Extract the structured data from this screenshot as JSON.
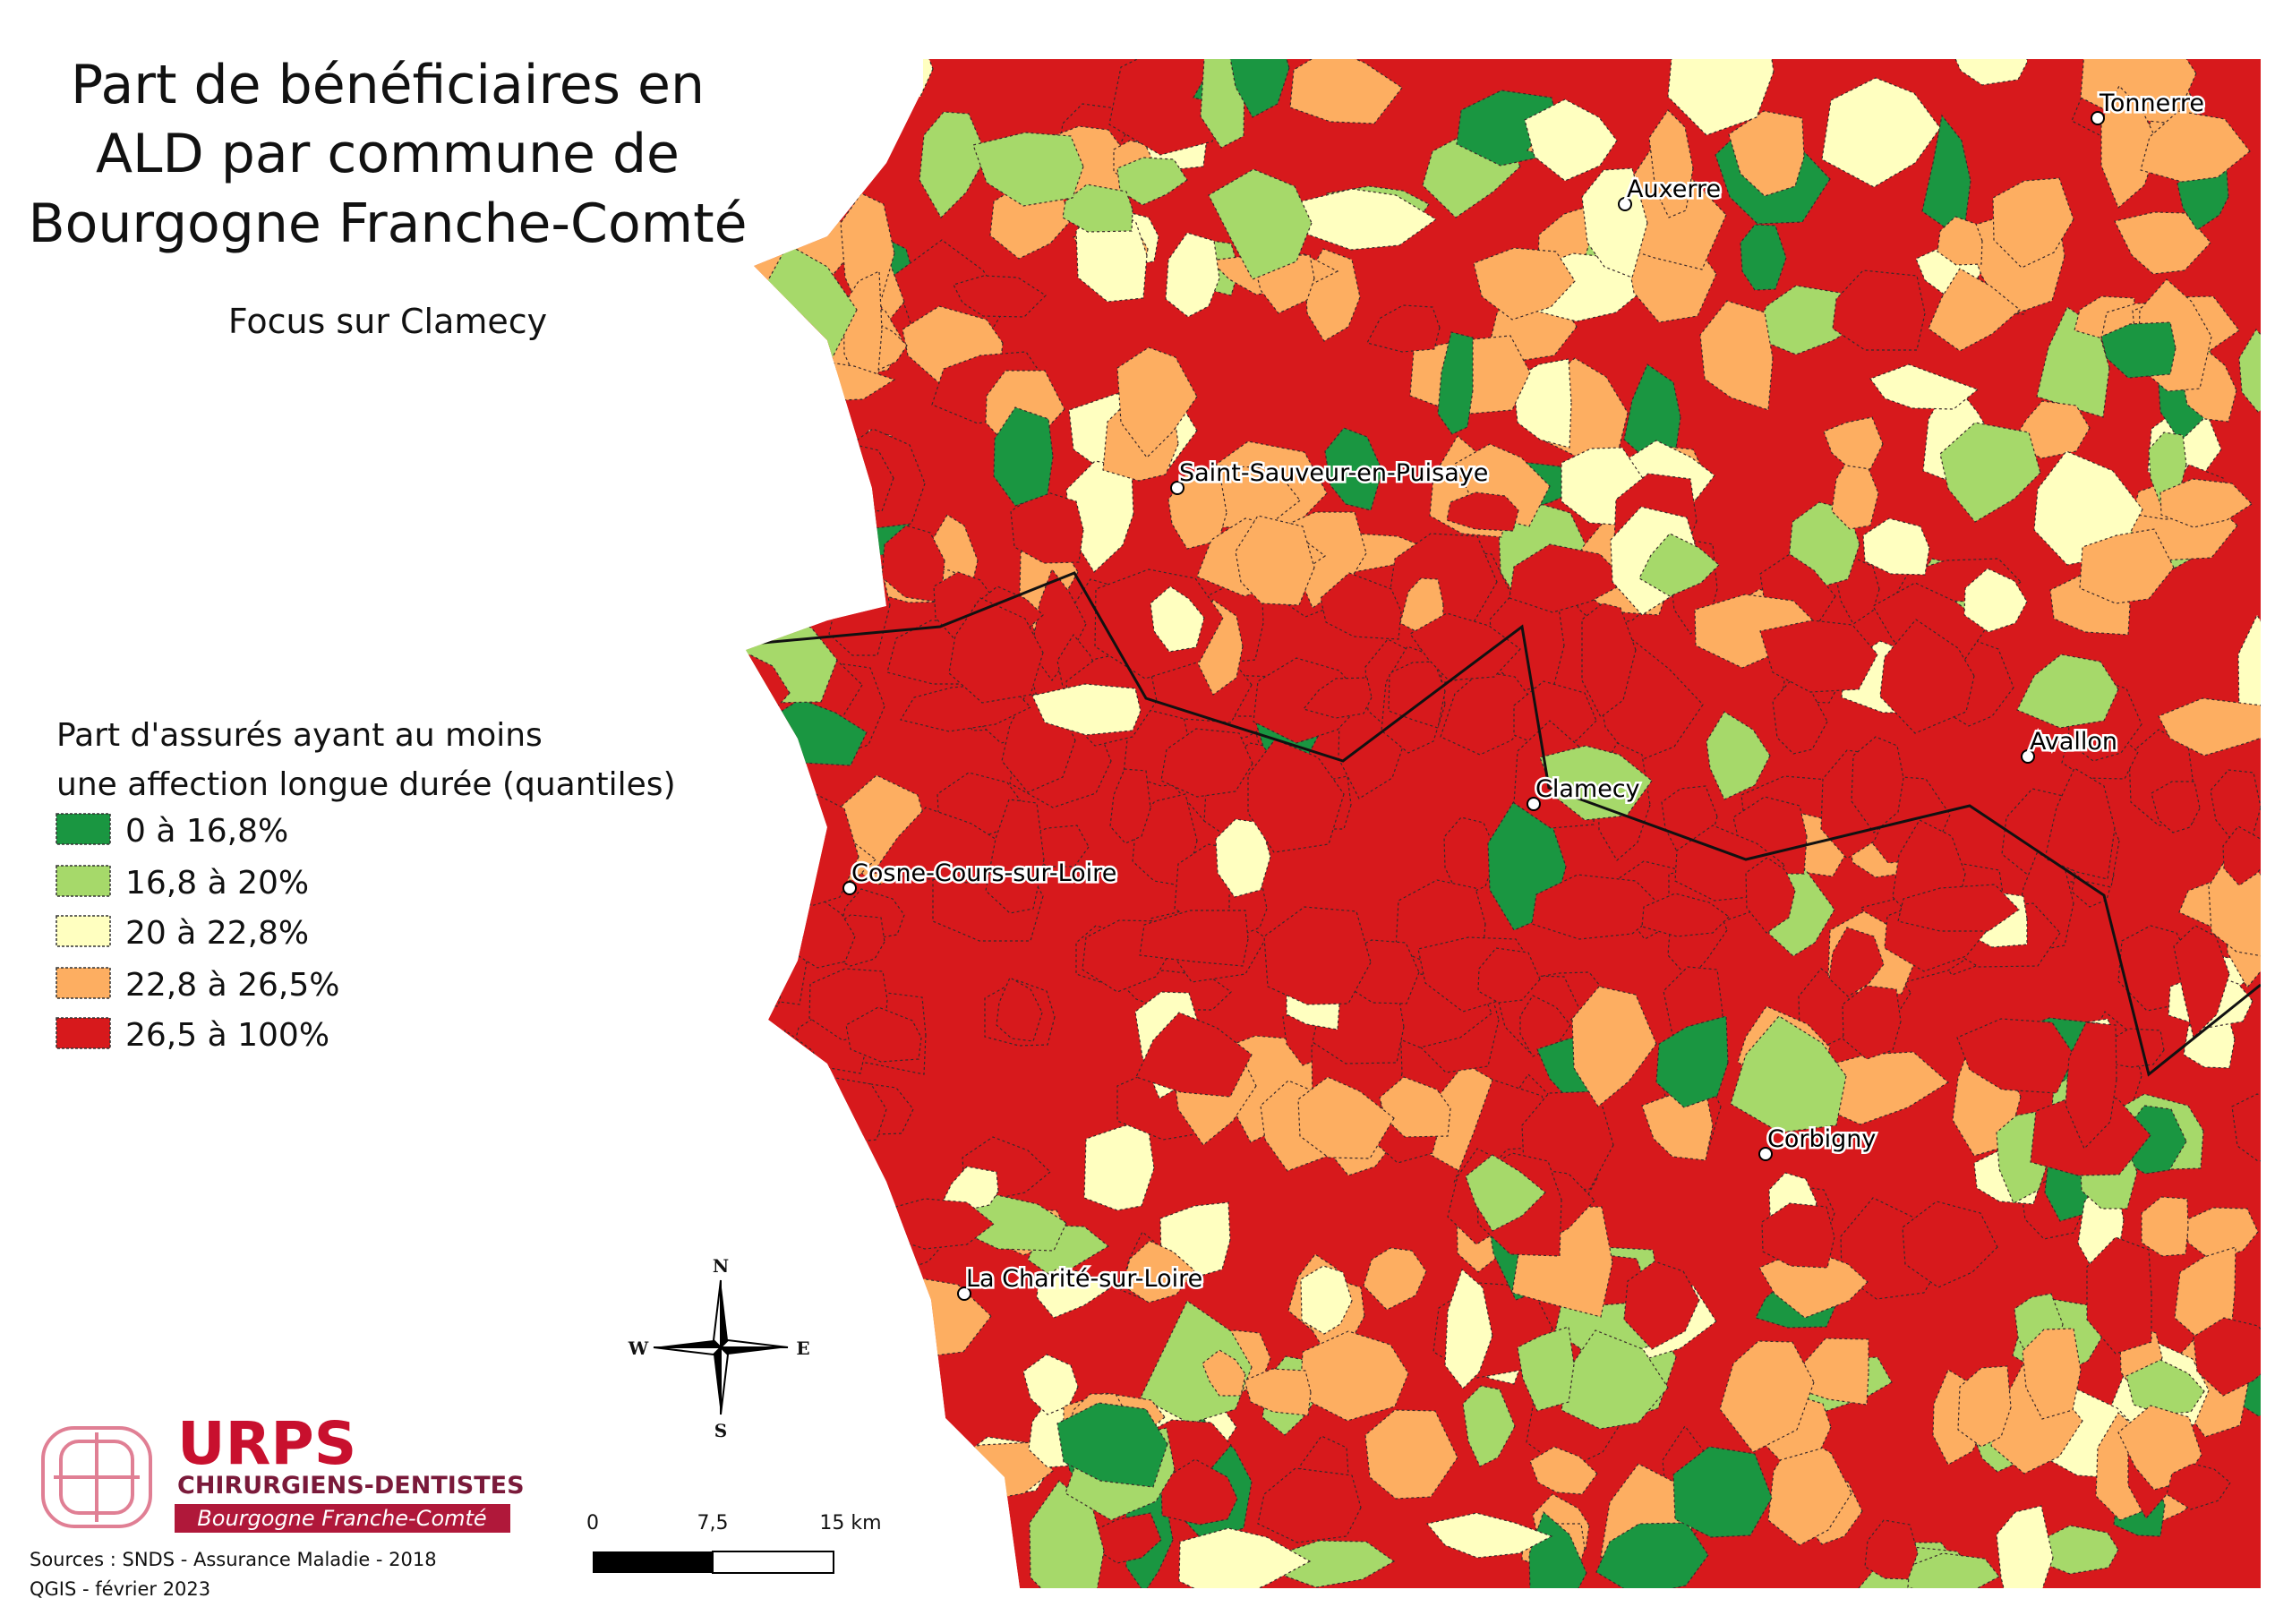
{
  "header": {
    "title": [
      "Part de bénéficiaires en",
      "ALD par commune de",
      "Bourgogne Franche-Comté"
    ],
    "subtitle": "Focus sur Clamecy"
  },
  "legend": {
    "title": [
      "Part d'assurés ayant au moins",
      "une affection longue durée (quantiles)"
    ],
    "items": [
      {
        "label": "0 à 16,8%",
        "color": "#1a9641"
      },
      {
        "label": "16,8 à 20%",
        "color": "#a6d96a"
      },
      {
        "label": "20 à 22,8%",
        "color": "#ffffc0"
      },
      {
        "label": "22,8 à 26,5%",
        "color": "#fdae61"
      },
      {
        "label": "26,5 à 100%",
        "color": "#d7191c"
      }
    ]
  },
  "cities": [
    "Tonnerre",
    "Auxerre",
    "Saint-Sauveur-en-Puisaye",
    "Avallon",
    "Clamecy",
    "Cosne-Cours-sur-Loire",
    "Corbigny",
    "La Charité-sur-Loire"
  ],
  "compass": {
    "n": "N",
    "s": "S",
    "e": "E",
    "w": "W"
  },
  "scale": {
    "labels": [
      "0",
      "7,5",
      "15 km"
    ]
  },
  "logo": {
    "name": "URPS",
    "profession": "CHIRURGIENS-DENTISTES",
    "region": "Bourgogne Franche-Comté"
  },
  "footer": {
    "sources": "Sources : SNDS - Assurance Maladie - 2018",
    "software": "QGIS - février 2023"
  }
}
